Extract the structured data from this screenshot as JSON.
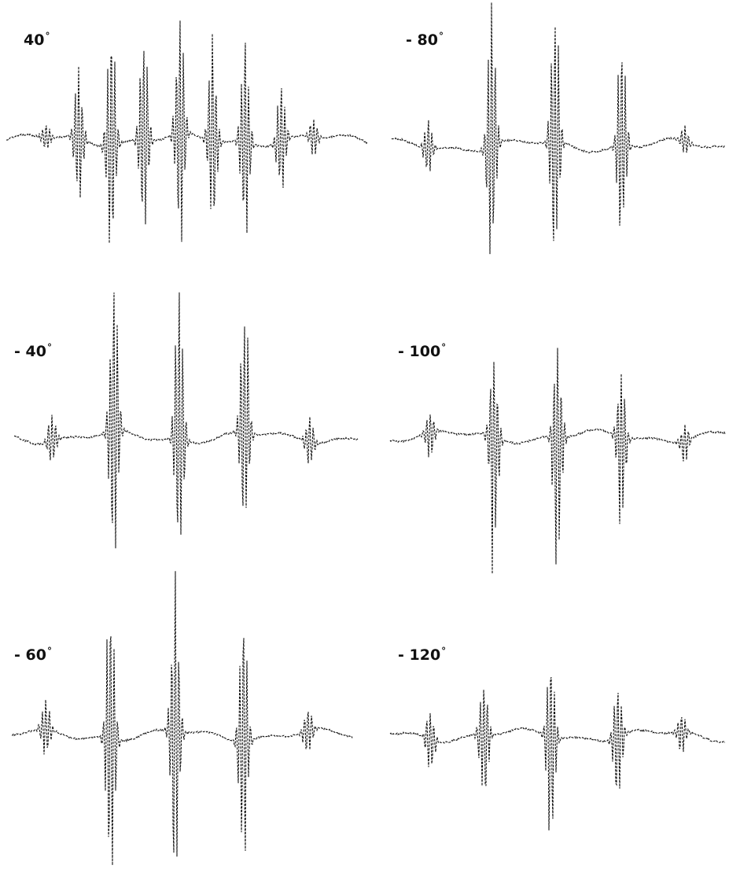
{
  "figure": {
    "ink_color": "#111111",
    "panels": [
      {
        "label": "40",
        "degree_symbol": "°",
        "peaks": [
          {
            "pos": 0.11,
            "amp": 0.12
          },
          {
            "pos": 0.2,
            "amp": 0.55
          },
          {
            "pos": 0.29,
            "amp": 1.0
          },
          {
            "pos": 0.38,
            "amp": 0.85
          },
          {
            "pos": 0.48,
            "amp": 1.0
          },
          {
            "pos": 0.57,
            "amp": 0.75
          },
          {
            "pos": 0.66,
            "amp": 0.8
          },
          {
            "pos": 0.76,
            "amp": 0.45
          },
          {
            "pos": 0.85,
            "amp": 0.15
          }
        ]
      },
      {
        "label": "- 80",
        "degree_symbol": "°",
        "peaks": [
          {
            "pos": 0.11,
            "amp": 0.2
          },
          {
            "pos": 0.3,
            "amp": 1.0
          },
          {
            "pos": 0.49,
            "amp": 1.0
          },
          {
            "pos": 0.69,
            "amp": 0.75
          },
          {
            "pos": 0.88,
            "amp": 0.1
          }
        ]
      },
      {
        "label": "- 40",
        "degree_symbol": "°",
        "peaks": [
          {
            "pos": 0.11,
            "amp": 0.18
          },
          {
            "pos": 0.29,
            "amp": 1.0
          },
          {
            "pos": 0.48,
            "amp": 1.0
          },
          {
            "pos": 0.67,
            "amp": 0.85
          },
          {
            "pos": 0.86,
            "amp": 0.18
          }
        ]
      },
      {
        "label": "- 100",
        "degree_symbol": "°",
        "peaks": [
          {
            "pos": 0.12,
            "amp": 0.2
          },
          {
            "pos": 0.31,
            "amp": 0.85
          },
          {
            "pos": 0.5,
            "amp": 0.95
          },
          {
            "pos": 0.69,
            "amp": 0.6
          },
          {
            "pos": 0.88,
            "amp": 0.15
          }
        ]
      },
      {
        "label": "- 60",
        "degree_symbol": "°",
        "peaks": [
          {
            "pos": 0.1,
            "amp": 0.2
          },
          {
            "pos": 0.29,
            "amp": 1.0
          },
          {
            "pos": 0.48,
            "amp": 1.0
          },
          {
            "pos": 0.68,
            "amp": 0.85
          },
          {
            "pos": 0.87,
            "amp": 0.18
          }
        ]
      },
      {
        "label": "- 120",
        "degree_symbol": "°",
        "peaks": [
          {
            "pos": 0.12,
            "amp": 0.3
          },
          {
            "pos": 0.28,
            "amp": 0.55
          },
          {
            "pos": 0.48,
            "amp": 0.8
          },
          {
            "pos": 0.68,
            "amp": 0.55
          },
          {
            "pos": 0.87,
            "amp": 0.2
          }
        ]
      }
    ]
  }
}
